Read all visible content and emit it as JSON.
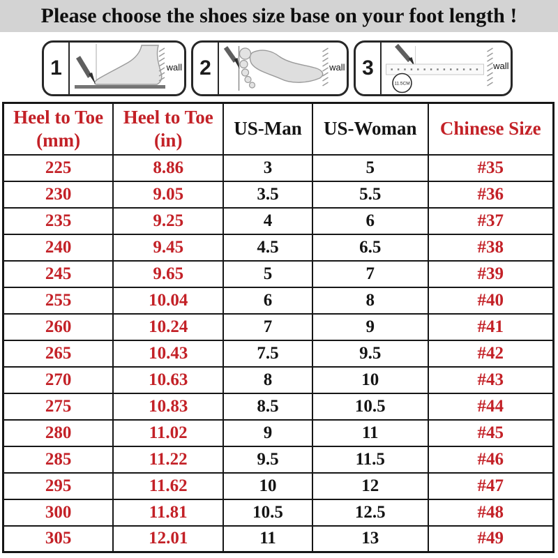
{
  "title": "Please choose the shoes size base on your foot length !",
  "colors": {
    "red": "#c32127",
    "black": "#141414",
    "title_bg": "#d3d3d3",
    "border": "#161616"
  },
  "diagrams": [
    {
      "step": "1",
      "wall_label": "wall"
    },
    {
      "step": "2",
      "wall_label": "wall"
    },
    {
      "step": "3",
      "wall_label": "wall",
      "circle_label": "11.5CM"
    }
  ],
  "table": {
    "columns": [
      {
        "key": "mm",
        "style": "red"
      },
      {
        "key": "in",
        "style": "red"
      },
      {
        "key": "us_man",
        "style": "black"
      },
      {
        "key": "us_woman",
        "style": "black"
      },
      {
        "key": "cn",
        "style": "red"
      }
    ],
    "headers": [
      {
        "label": "Heel to Toe",
        "sub": "(mm)"
      },
      {
        "label": "Heel to Toe",
        "sub": "(in)"
      },
      {
        "label": "US-Man"
      },
      {
        "label": "US-Woman"
      },
      {
        "label": "Chinese Size"
      }
    ],
    "rows": [
      {
        "mm": "225",
        "in": "8.86",
        "us_man": "3",
        "us_woman": "5",
        "cn": "#35"
      },
      {
        "mm": "230",
        "in": "9.05",
        "us_man": "3.5",
        "us_woman": "5.5",
        "cn": "#36"
      },
      {
        "mm": "235",
        "in": "9.25",
        "us_man": "4",
        "us_woman": "6",
        "cn": "#37"
      },
      {
        "mm": "240",
        "in": "9.45",
        "us_man": "4.5",
        "us_woman": "6.5",
        "cn": "#38"
      },
      {
        "mm": "245",
        "in": "9.65",
        "us_man": "5",
        "us_woman": "7",
        "cn": "#39"
      },
      {
        "mm": "255",
        "in": "10.04",
        "us_man": "6",
        "us_woman": "8",
        "cn": "#40"
      },
      {
        "mm": "260",
        "in": "10.24",
        "us_man": "7",
        "us_woman": "9",
        "cn": "#41"
      },
      {
        "mm": "265",
        "in": "10.43",
        "us_man": "7.5",
        "us_woman": "9.5",
        "cn": "#42"
      },
      {
        "mm": "270",
        "in": "10.63",
        "us_man": "8",
        "us_woman": "10",
        "cn": "#43"
      },
      {
        "mm": "275",
        "in": "10.83",
        "us_man": "8.5",
        "us_woman": "10.5",
        "cn": "#44"
      },
      {
        "mm": "280",
        "in": "11.02",
        "us_man": "9",
        "us_woman": "11",
        "cn": "#45"
      },
      {
        "mm": "285",
        "in": "11.22",
        "us_man": "9.5",
        "us_woman": "11.5",
        "cn": "#46"
      },
      {
        "mm": "295",
        "in": "11.62",
        "us_man": "10",
        "us_woman": "12",
        "cn": "#47"
      },
      {
        "mm": "300",
        "in": "11.81",
        "us_man": "10.5",
        "us_woman": "12.5",
        "cn": "#48"
      },
      {
        "mm": "305",
        "in": "12.01",
        "us_man": "11",
        "us_woman": "13",
        "cn": "#49"
      }
    ]
  }
}
